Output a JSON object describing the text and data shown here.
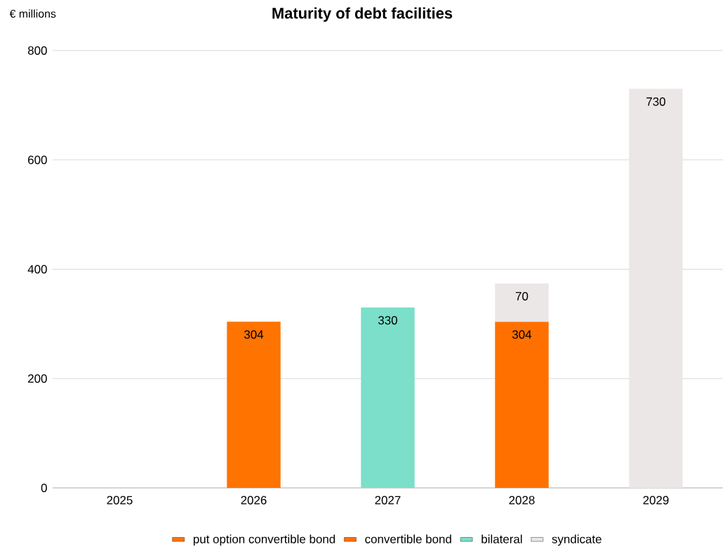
{
  "chart_data": {
    "type": "bar",
    "title": "Maturity of debt facilities",
    "ylabel": "€ millions",
    "categories": [
      "2025",
      "2026",
      "2027",
      "2028",
      "2029"
    ],
    "series": [
      {
        "name": "put option convertible bond",
        "color": "#ff7300",
        "values": [
          null,
          304,
          null,
          null,
          null
        ]
      },
      {
        "name": "convertible bond",
        "color": "#ff7000",
        "values": [
          null,
          null,
          null,
          304,
          null
        ]
      },
      {
        "name": "bilateral",
        "color": "#7bdfc9",
        "values": [
          null,
          null,
          330,
          null,
          null
        ]
      },
      {
        "name": "syndicate",
        "color": "#ebe7e6",
        "values": [
          null,
          null,
          null,
          70,
          730
        ]
      }
    ],
    "stacked": true,
    "data_labels": true,
    "ylim": [
      0,
      800
    ],
    "yticks": [
      0,
      200,
      400,
      600,
      800
    ],
    "grid": "y",
    "legend": "bottom"
  }
}
